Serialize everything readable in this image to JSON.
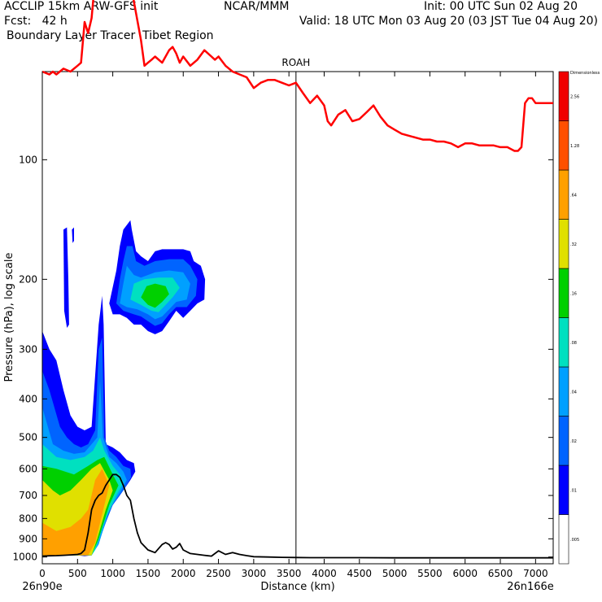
{
  "header": {
    "left_line1": "ACCLIP 15km ARW-GFS init",
    "left_line2": "Fcst:   42 h",
    "left_line3": "Boundary Layer Tracer  Tibet Region",
    "center_line1": "NCAR/MMM",
    "right_line1": "Init: 00 UTC Sun 02 Aug 20",
    "right_line2": "Valid: 18 UTC Mon 03 Aug 20 (03 JST Tue 04 Aug 20)"
  },
  "chart_data": {
    "type": "heatmap",
    "title": "",
    "marker_label": "ROAH",
    "marker_x_km": 3600,
    "xlabel": "Distance (km)",
    "ylabel": "Pressure (hPa), log scale",
    "x_start_label": "26n90e",
    "x_end_label": "26n166e",
    "xlim": [
      0,
      7250
    ],
    "ylim_hPa": [
      1040,
      60
    ],
    "y_scale": "log",
    "x_ticks": [
      0,
      500,
      1000,
      1500,
      2000,
      2500,
      3000,
      3500,
      4000,
      4500,
      5000,
      5500,
      6000,
      6500,
      7000
    ],
    "y_ticks": [
      100,
      200,
      300,
      400,
      500,
      600,
      700,
      800,
      900,
      1000
    ],
    "colorbar": {
      "title": "Dimensionless",
      "levels": [
        ".005",
        ".01",
        ".02",
        ".04",
        ".08",
        ".16",
        ".32",
        ".64",
        "1.28",
        "2.56"
      ],
      "colors": [
        "#ffffff",
        "#0000ff",
        "#0064ff",
        "#00a0ff",
        "#00e0c0",
        "#00d000",
        "#e0e000",
        "#ffa000",
        "#ff5000",
        "#f00000"
      ]
    },
    "series": [
      {
        "label": "tropopause",
        "color": "#ff0000",
        "x_km": [
          0,
          100,
          150,
          200,
          300,
          400,
          500,
          550,
          600,
          650,
          700,
          750,
          800,
          850,
          900,
          950,
          1000,
          1050,
          1100,
          1150,
          1200,
          1300,
          1400,
          1450,
          1500,
          1550,
          1600,
          1700,
          1800,
          1850,
          1900,
          1950,
          2000,
          2100,
          2200,
          2300,
          2400,
          2450,
          2500,
          2600,
          2700,
          2800,
          2900,
          3000,
          3100,
          3200,
          3300,
          3400,
          3500,
          3600,
          3700,
          3800,
          3900,
          4000,
          4050,
          4100,
          4200,
          4300,
          4400,
          4500,
          4600,
          4700,
          4800,
          4900,
          5000,
          5100,
          5200,
          5300,
          5400,
          5500,
          5600,
          5700,
          5800,
          5900,
          6000,
          6100,
          6200,
          6300,
          6400,
          6500,
          6600,
          6650,
          6700,
          6750,
          6800,
          6850,
          6900,
          6950,
          7000,
          7100,
          7250
        ],
        "p_hPa": [
          60,
          61,
          60,
          61,
          59,
          60,
          58,
          57,
          45,
          48,
          44,
          35,
          30,
          27,
          26,
          24,
          24,
          26,
          27,
          28,
          30,
          40,
          50,
          58,
          57,
          56,
          55,
          57,
          53,
          52,
          54,
          57,
          55,
          58,
          56,
          53,
          55,
          56,
          55,
          58,
          60,
          61,
          62,
          66,
          64,
          63,
          63,
          64,
          65,
          64,
          68,
          72,
          69,
          73,
          80,
          82,
          77,
          75,
          80,
          79,
          76,
          73,
          78,
          82,
          84,
          86,
          87,
          88,
          89,
          89,
          90,
          90,
          91,
          93,
          91,
          91,
          92,
          92,
          92,
          93,
          93,
          94,
          95,
          95,
          93,
          72,
          70,
          70,
          72,
          72,
          72
        ]
      },
      {
        "label": "terrain",
        "color": "#000000",
        "x_km": [
          0,
          100,
          200,
          300,
          400,
          500,
          550,
          600,
          650,
          700,
          750,
          800,
          850,
          900,
          950,
          1000,
          1050,
          1100,
          1150,
          1200,
          1250,
          1300,
          1350,
          1400,
          1500,
          1600,
          1700,
          1750,
          1800,
          1850,
          1900,
          1950,
          2000,
          2100,
          2200,
          2300,
          2400,
          2500,
          2600,
          2700,
          2800,
          2900,
          3000,
          3200,
          3400,
          3600,
          3800,
          4000,
          4500,
          5000,
          5500,
          6000,
          6500,
          7000,
          7250
        ],
        "p_hPa": [
          995,
          993,
          992,
          990,
          988,
          985,
          980,
          960,
          870,
          760,
          720,
          700,
          690,
          660,
          640,
          620,
          620,
          630,
          660,
          700,
          720,
          800,
          870,
          920,
          960,
          975,
          930,
          920,
          930,
          955,
          945,
          925,
          960,
          980,
          985,
          990,
          995,
          965,
          985,
          975,
          985,
          992,
          998,
          1000,
          1002,
          1003,
          1004,
          1004,
          1004,
          1005,
          1005,
          1005,
          1005,
          1005,
          1005
        ]
      }
    ]
  }
}
